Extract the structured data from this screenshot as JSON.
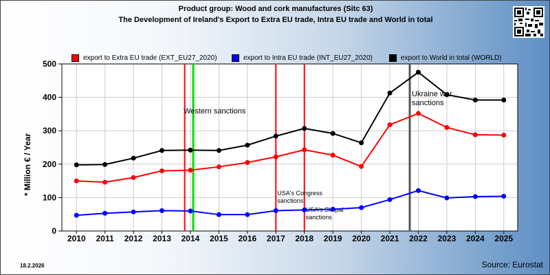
{
  "header": {
    "title_line1": "Product group: Wood and cork manufactures (Sitc 63)",
    "title_line2": "The Development of Ireland's Export to Extra EU trade, Intra EU trade and World in total"
  },
  "footer": {
    "date": "18.2.2026",
    "source": "Source: Eurostat"
  },
  "colors": {
    "extra": "#ff0000",
    "intra": "#0000ff",
    "world": "#000000",
    "green_line": "#00dd00",
    "gray_line": "#555555"
  },
  "chart_data": {
    "type": "line",
    "ylabel": "* Million € / Year",
    "ylim": [
      0,
      500
    ],
    "yticks": [
      0,
      100,
      200,
      300,
      400,
      500
    ],
    "categories": [
      "2010",
      "2011",
      "2012",
      "2013",
      "2014",
      "2015",
      "2016",
      "2017",
      "2018",
      "2019",
      "2020",
      "2021",
      "2022",
      "2023",
      "2024",
      "2025"
    ],
    "series": [
      {
        "name": "export to Extra EU trade (EXT_EU27_2020)",
        "color_key": "extra",
        "values": [
          150,
          146,
          160,
          180,
          182,
          192,
          205,
          222,
          243,
          227,
          193,
          318,
          352,
          310,
          288,
          287
        ]
      },
      {
        "name": "export to Intra EU trade (INT_EU27_2020)",
        "color_key": "intra",
        "values": [
          47,
          53,
          57,
          61,
          60,
          49,
          49,
          61,
          63,
          65,
          70,
          94,
          121,
          99,
          103,
          104
        ]
      },
      {
        "name": "export to World in total (WORLD)",
        "color_key": "world",
        "values": [
          198,
          199,
          218,
          241,
          242,
          241,
          257,
          284,
          307,
          292,
          264,
          413,
          475,
          408,
          392,
          392
        ]
      }
    ],
    "grid": true,
    "legend_position": "top",
    "events": [
      {
        "x": 2013.8,
        "color_key": "extra",
        "label": ""
      },
      {
        "x": 2014.1,
        "color_key": "green_line",
        "label": "Western sanctions"
      },
      {
        "x": 2017.0,
        "color_key": "extra",
        "label": "USA's Congress sanctions"
      },
      {
        "x": 2018.0,
        "color_key": "extra",
        "label": "USA's Skripal sanctions"
      },
      {
        "x": 2021.7,
        "color_key": "gray_line",
        "label": "Ukraine war sanctions"
      }
    ]
  }
}
